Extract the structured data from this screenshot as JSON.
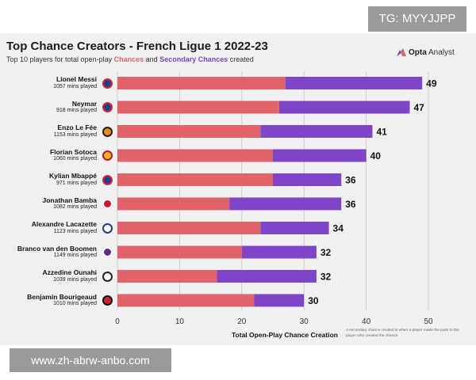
{
  "watermark_top": "TG: MYYJJPP",
  "watermark_bottom": "www.zh-abrw-anbo.com",
  "title": "Top Chance Creators - French Ligue 1 2022-23",
  "subtitle": {
    "prefix": "Top 10 players for total open-play",
    "chances": "Chances",
    "and": "and",
    "secondary": "Secondary Chances",
    "suffix": "created"
  },
  "brand": {
    "name": "Opta",
    "suffix": "Analyst"
  },
  "footnote": "A secondary chance created is when a player made the pass to the player who created the chance",
  "colors": {
    "chances": "#e0636a",
    "secondary": "#7e45c8",
    "bg": "#f1f1f1",
    "grid": "#c9c9c9"
  },
  "players": [
    {
      "name": "Lionel Messi",
      "mins": "1057 mins played",
      "crest": "psg"
    },
    {
      "name": "Neymar",
      "mins": "918 mins played",
      "crest": "psg"
    },
    {
      "name": "Enzo Le Fée",
      "mins": "1153 mins played",
      "crest": "lorient"
    },
    {
      "name": "Florian Sotoca",
      "mins": "1060 mins played",
      "crest": "lens"
    },
    {
      "name": "Kylian Mbappé",
      "mins": "971 mins played",
      "crest": "psg"
    },
    {
      "name": "Jonathan Bamba",
      "mins": "1082 mins played",
      "crest": "lille"
    },
    {
      "name": "Alexandre Lacazette",
      "mins": "1123 mins played",
      "crest": "lyon"
    },
    {
      "name": "Branco van den Boomen",
      "mins": "1149 mins played",
      "crest": "toulouse"
    },
    {
      "name": "Azzedine Ounahi",
      "mins": "1039 mins played",
      "crest": "angers"
    },
    {
      "name": "Benjamin Bourigeaud",
      "mins": "1010 mins played",
      "crest": "rennes"
    }
  ],
  "chart_data": {
    "type": "bar",
    "orientation": "horizontal",
    "stacked": true,
    "categories": [
      "Lionel Messi",
      "Neymar",
      "Enzo Le Fée",
      "Florian Sotoca",
      "Kylian Mbappé",
      "Jonathan Bamba",
      "Alexandre Lacazette",
      "Branco van den Boomen",
      "Azzedine Ounahi",
      "Benjamin Bourigeaud"
    ],
    "series": [
      {
        "name": "Chances",
        "values": [
          27,
          26,
          23,
          25,
          25,
          18,
          23,
          20,
          16,
          22
        ]
      },
      {
        "name": "Secondary Chances",
        "values": [
          22,
          21,
          18,
          15,
          11,
          18,
          11,
          12,
          16,
          8
        ]
      }
    ],
    "totals": [
      49,
      47,
      41,
      40,
      36,
      36,
      34,
      32,
      32,
      30
    ],
    "xlabel": "Total Open-Play Chance Creation",
    "xlim": [
      0,
      50
    ],
    "xticks": [
      0,
      10,
      20,
      30,
      40,
      50
    ],
    "grid": true
  }
}
